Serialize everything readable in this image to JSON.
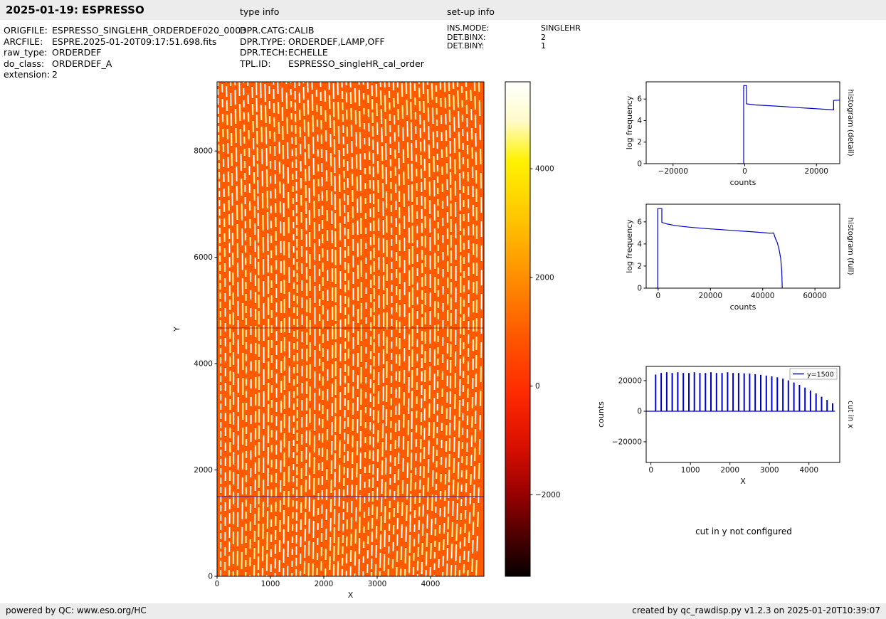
{
  "header": {
    "title": "2025-01-19: ESPRESSO",
    "type_info": "type info",
    "setup_info": "set-up info"
  },
  "metadata": {
    "left": [
      {
        "label": "ORIGFILE:",
        "value": "ESPRESSO_SINGLEHR_ORDERDEF020_0003"
      },
      {
        "label": "ARCFILE:",
        "value": "ESPRE.2025-01-20T09:17:51.698.fits"
      },
      {
        "label": "raw_type:",
        "value": "ORDERDEF"
      },
      {
        "label": "do_class:",
        "value": "ORDERDEF_A"
      },
      {
        "label": "extension:",
        "value": "2"
      }
    ],
    "type_info": [
      {
        "label": "DPR.CATG:",
        "value": "CALIB"
      },
      {
        "label": "DPR.TYPE:",
        "value": "ORDERDEF,LAMP,OFF"
      },
      {
        "label": "DPR.TECH:",
        "value": "ECHELLE"
      },
      {
        "label": "TPL.ID:",
        "value": "ESPRESSO_singleHR_cal_order"
      }
    ],
    "setup_info": [
      {
        "label": "INS.MODE:",
        "value": "SINGLEHR"
      },
      {
        "label": "DET.BINX:",
        "value": "2"
      },
      {
        "label": "DET.BINY:",
        "value": "1"
      }
    ]
  },
  "notes": {
    "cut_y": "cut in y not configured"
  },
  "footer": {
    "left": "powered by QC: www.eso.org/HC",
    "right": "created by qc_rawdisp.py v1.2.3 on 2025-01-20T10:39:07"
  },
  "chart_data": [
    {
      "id": "main-image",
      "type": "image",
      "description": "ESPRESSO ORDERDEF raw frame: dense bright echelle order stripes (white/yellow) on orange background, hot colormap",
      "xlabel": "X",
      "ylabel": "Y",
      "xlim": [
        0,
        5000
      ],
      "ylim": [
        0,
        9300
      ],
      "xticks": [
        0,
        1000,
        2000,
        3000,
        4000
      ],
      "yticks": [
        0,
        2000,
        4000,
        6000,
        8000
      ],
      "colormap": "hot",
      "background": "#ff5a00",
      "order_color": "#ffffff",
      "order_alt_color": "#ffcf40",
      "n_orders": 62,
      "cut_line_y": 1500,
      "cut_line_color": "#3333dd",
      "detector_gap_y": 4670
    },
    {
      "id": "colorbar",
      "type": "colorbar",
      "vmin": -3500,
      "vmax": 5600,
      "ticks": [
        4000,
        2000,
        0,
        -2000
      ],
      "gradient": [
        [
          0,
          "#ffffff"
        ],
        [
          8,
          "#fffbc8"
        ],
        [
          16,
          "#fff200"
        ],
        [
          28,
          "#ffc400"
        ],
        [
          40,
          "#ff8c00"
        ],
        [
          52,
          "#ff5500"
        ],
        [
          63,
          "#ff2a00"
        ],
        [
          74,
          "#d80f00"
        ],
        [
          84,
          "#930000"
        ],
        [
          93,
          "#420000"
        ],
        [
          100,
          "#050000"
        ]
      ]
    },
    {
      "id": "hist-detail",
      "type": "line",
      "right_label": "histogram (detail)",
      "xlabel": "counts",
      "ylabel": "log frequency",
      "xlim": [
        -27500,
        26500
      ],
      "ylim": [
        0,
        7.6
      ],
      "xticks": [
        -20000,
        0,
        20000
      ],
      "yticks": [
        0,
        2,
        4,
        6
      ],
      "series": [
        {
          "name": "histogram",
          "color": "#0000cc",
          "points": [
            [
              -2000,
              0
            ],
            [
              -300,
              0
            ],
            [
              -300,
              7.25
            ],
            [
              500,
              7.25
            ],
            [
              500,
              5.55
            ],
            [
              3000,
              5.45
            ],
            [
              7000,
              5.38
            ],
            [
              11000,
              5.3
            ],
            [
              15000,
              5.2
            ],
            [
              19000,
              5.12
            ],
            [
              22500,
              5.05
            ],
            [
              24800,
              5.0
            ],
            [
              24800,
              5.87
            ],
            [
              26500,
              5.9
            ]
          ]
        }
      ]
    },
    {
      "id": "hist-full",
      "type": "line",
      "right_label": "histogram (full)",
      "xlabel": "counts",
      "ylabel": "log frequency",
      "xlim": [
        -4600,
        69500
      ],
      "ylim": [
        0,
        7.6
      ],
      "xticks": [
        0,
        20000,
        40000,
        60000
      ],
      "yticks": [
        0,
        2,
        4,
        6
      ],
      "series": [
        {
          "name": "histogram",
          "color": "#0000cc",
          "points": [
            [
              -1000,
              0
            ],
            [
              -200,
              0
            ],
            [
              -200,
              7.2
            ],
            [
              1400,
              7.2
            ],
            [
              1400,
              5.95
            ],
            [
              3500,
              5.8
            ],
            [
              7000,
              5.65
            ],
            [
              12000,
              5.52
            ],
            [
              18000,
              5.4
            ],
            [
              24000,
              5.3
            ],
            [
              30000,
              5.2
            ],
            [
              35000,
              5.12
            ],
            [
              39000,
              5.05
            ],
            [
              41500,
              5.0
            ],
            [
              43000,
              4.97
            ],
            [
              44200,
              5.0
            ],
            [
              44800,
              4.55
            ],
            [
              45600,
              4.1
            ],
            [
              46300,
              3.5
            ],
            [
              46900,
              2.7
            ],
            [
              47300,
              1.6
            ],
            [
              47500,
              0
            ]
          ]
        }
      ]
    },
    {
      "id": "cut-x",
      "type": "comb",
      "right_label": "cut in x",
      "legend": "y=1500",
      "xlabel": "X",
      "ylabel": "counts",
      "xlim": [
        -120,
        4780
      ],
      "ylim": [
        -33500,
        29300
      ],
      "xticks": [
        0,
        1000,
        2000,
        3000,
        4000
      ],
      "yticks": [
        -20000,
        0,
        20000
      ],
      "color": "#0000cc",
      "baseline": 0,
      "bars": [
        [
          120,
          24000
        ],
        [
          260,
          25000
        ],
        [
          400,
          25500
        ],
        [
          540,
          25000
        ],
        [
          680,
          25500
        ],
        [
          820,
          25000
        ],
        [
          960,
          25000
        ],
        [
          1100,
          25500
        ],
        [
          1240,
          25000
        ],
        [
          1380,
          25000
        ],
        [
          1520,
          25500
        ],
        [
          1660,
          25000
        ],
        [
          1800,
          25000
        ],
        [
          1940,
          25500
        ],
        [
          2080,
          25000
        ],
        [
          2220,
          25000
        ],
        [
          2360,
          24800
        ],
        [
          2500,
          24600
        ],
        [
          2640,
          24200
        ],
        [
          2780,
          23800
        ],
        [
          2920,
          23300
        ],
        [
          3060,
          22800
        ],
        [
          3200,
          22200
        ],
        [
          3340,
          21300
        ],
        [
          3480,
          20200
        ],
        [
          3620,
          18800
        ],
        [
          3760,
          17200
        ],
        [
          3900,
          15500
        ],
        [
          4040,
          13600
        ],
        [
          4180,
          11600
        ],
        [
          4320,
          9500
        ],
        [
          4460,
          7400
        ],
        [
          4600,
          5200
        ]
      ]
    }
  ]
}
